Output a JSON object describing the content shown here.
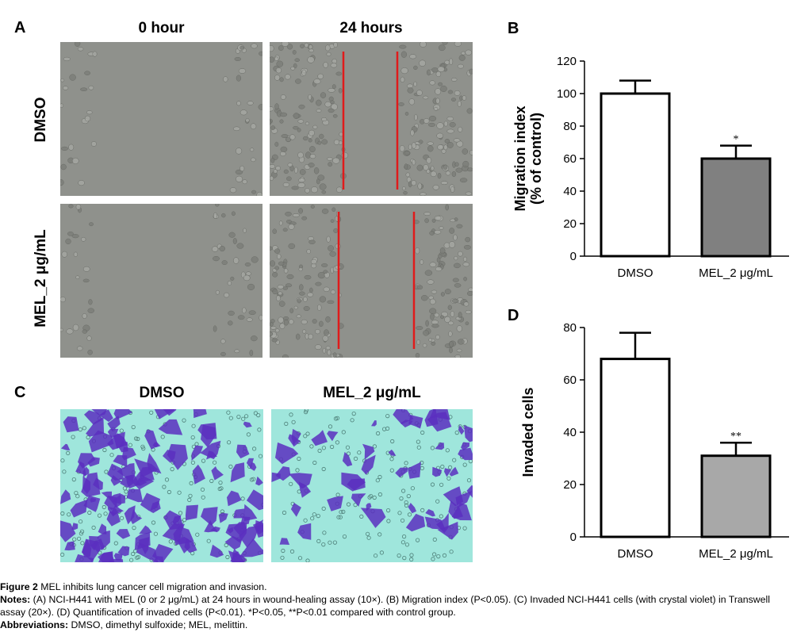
{
  "panel_a": {
    "letter": "A",
    "col_titles": [
      "0 hour",
      "24 hours"
    ],
    "row_labels": [
      "DMSO",
      "MEL_2 μg/mL"
    ]
  },
  "panel_c": {
    "letter": "C",
    "col_titles": [
      "DMSO",
      "MEL_2 μg/mL"
    ]
  },
  "colors": {
    "wound_red": "#e01b1b",
    "crystal_violet": "#5a2fbf",
    "transwell_bg": "#9fe6dc",
    "micro_gray": "#8f918c",
    "bar_dmso": "#ffffff",
    "bar_mel_b": "#808080",
    "bar_mel_d": "#a8a8a8"
  },
  "chart_data": [
    {
      "panel": "B",
      "type": "bar",
      "title": "",
      "ylabel": "Migration index\n(% of control)",
      "xlabel": "",
      "categories": [
        "DMSO",
        "MEL_2 μg/mL"
      ],
      "values": [
        100,
        60
      ],
      "error": [
        8,
        8
      ],
      "annotations": [
        "",
        "*"
      ],
      "ylim": [
        0,
        120
      ],
      "yticks": [
        0,
        20,
        40,
        60,
        80,
        100,
        120
      ]
    },
    {
      "panel": "D",
      "type": "bar",
      "title": "",
      "ylabel": "Invaded cells",
      "xlabel": "",
      "categories": [
        "DMSO",
        "MEL_2 μg/mL"
      ],
      "values": [
        68,
        31
      ],
      "error": [
        10,
        5
      ],
      "annotations": [
        "",
        "**"
      ],
      "ylim": [
        0,
        80
      ],
      "yticks": [
        0,
        20,
        40,
        60,
        80
      ]
    }
  ],
  "caption": {
    "figure_label": "Figure 2",
    "figure_text": " MEL inhibits lung cancer cell migration and invasion.",
    "notes_label": "Notes:",
    "notes_text": " (A) NCI-H441 with MEL (0 or 2 μg/mL) at 24 hours in wound-healing assay (10×). (B) Migration index (P<0.05). (C) Invaded NCI-H441 cells (with crystal violet) in Transwell assay (20×). (D) Quantification of invaded cells (P<0.01). *P<0.05, **P<0.01 compared with control group.",
    "abbrev_label": "Abbreviations:",
    "abbrev_text": " DMSO, dimethyl sulfoxide; MEL, melittin."
  }
}
